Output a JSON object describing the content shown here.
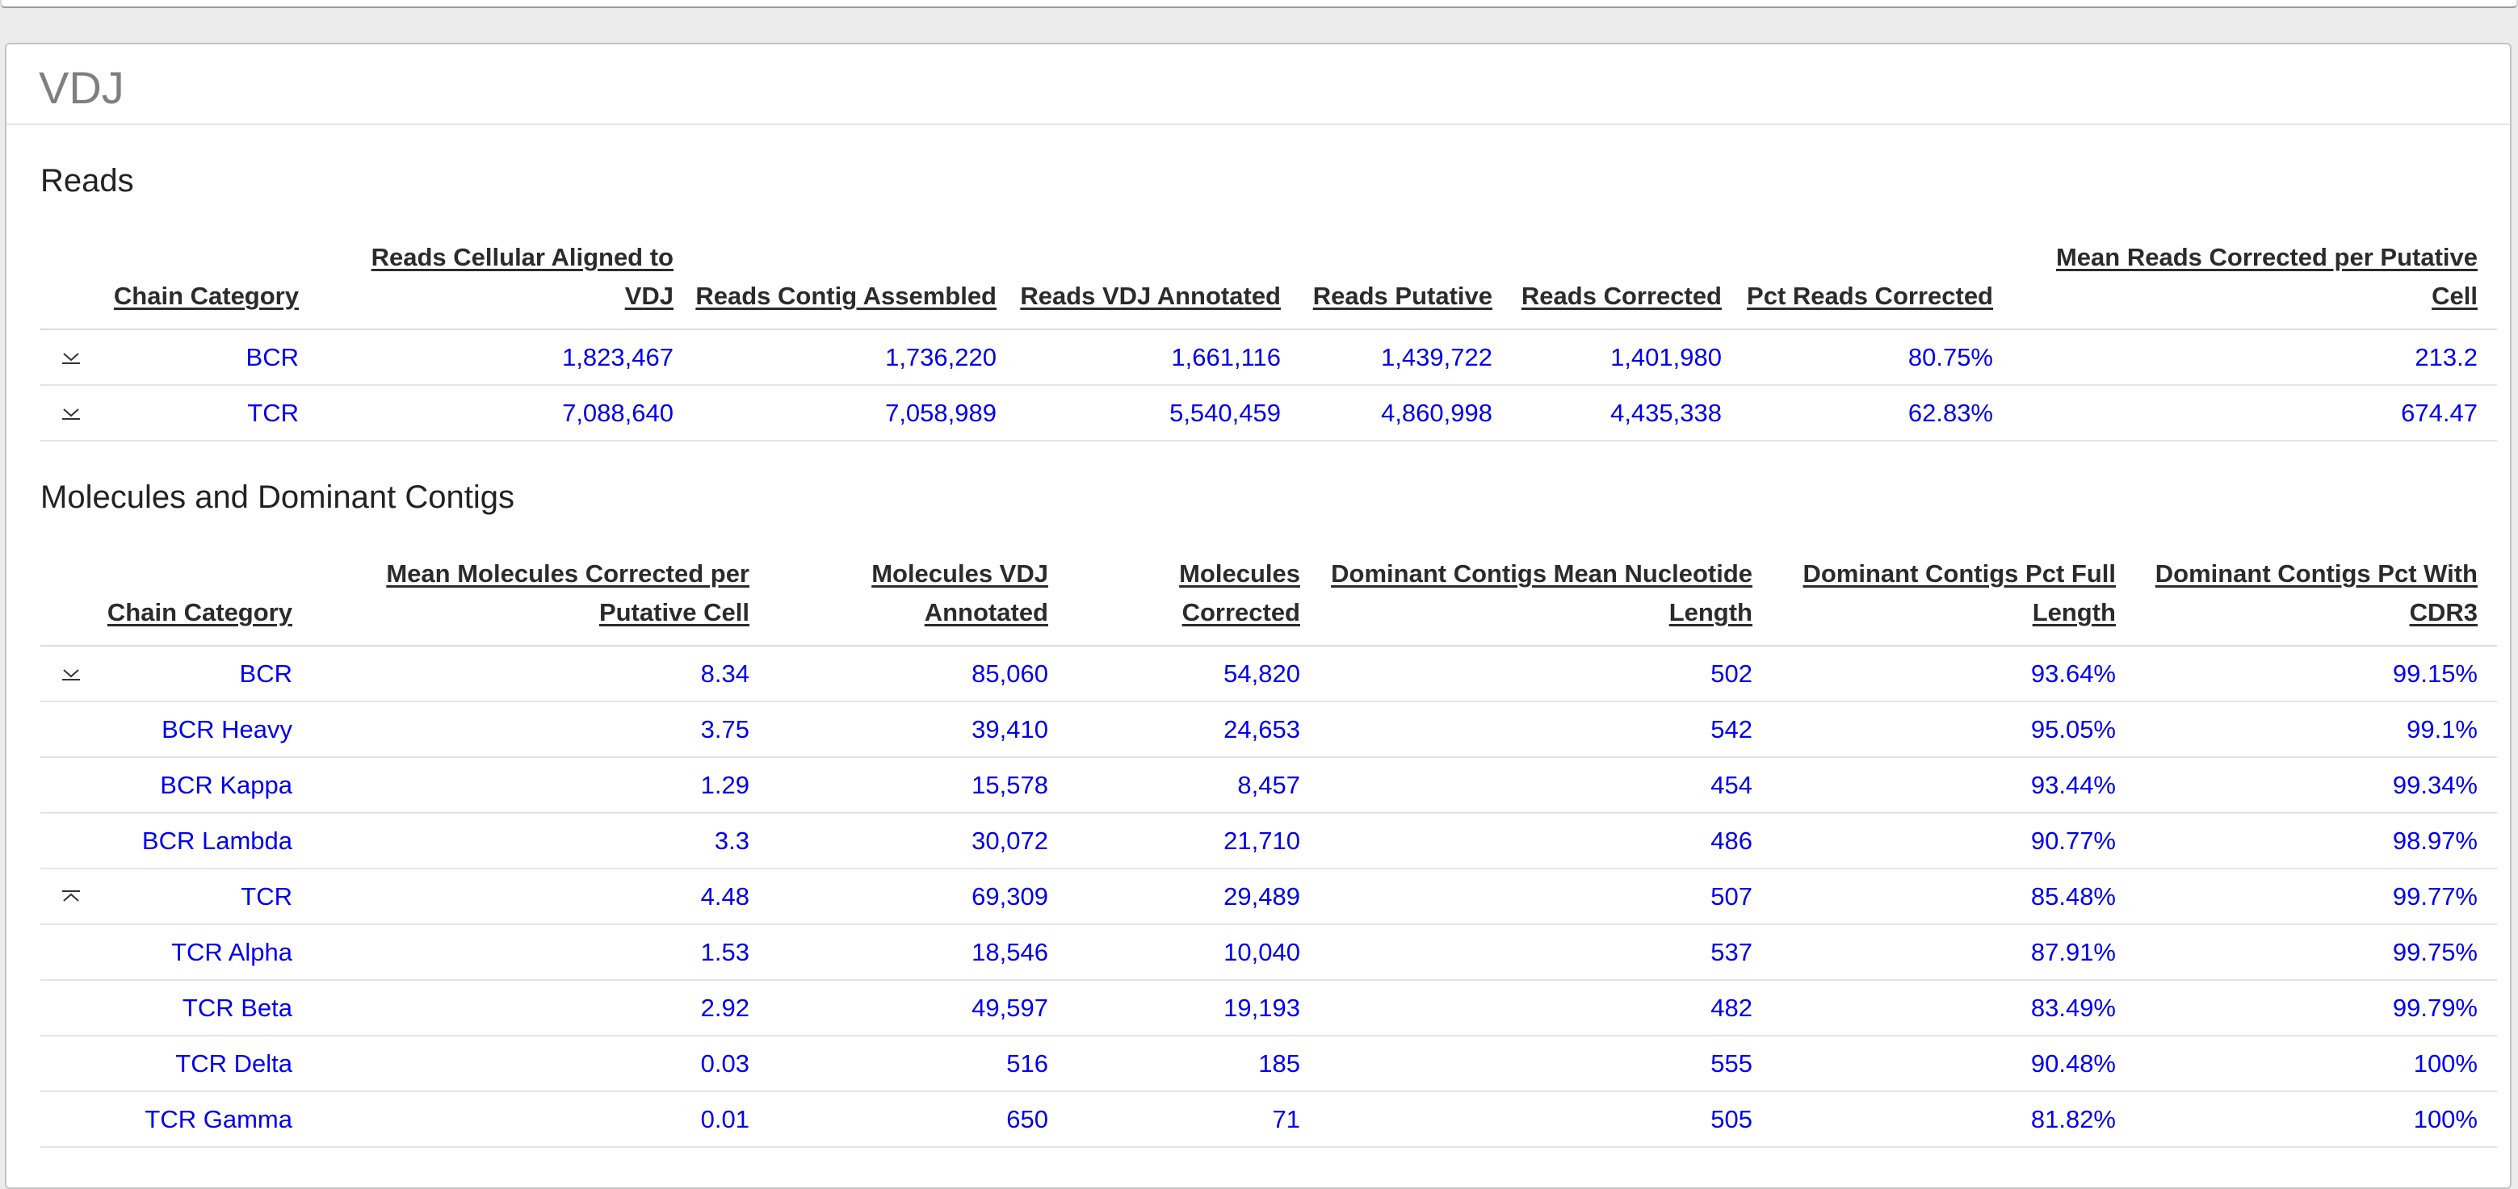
{
  "card": {
    "title": "VDJ"
  },
  "reads": {
    "title": "Reads",
    "headers": {
      "chain": "Chain Category",
      "aligned": "Reads Cellular Aligned to VDJ",
      "assembled": "Reads Contig Assembled",
      "annotated": "Reads VDJ Annotated",
      "putative": "Reads Putative",
      "corrected": "Reads Corrected",
      "pct": "Pct Reads Corrected",
      "mean": "Mean Reads Corrected per Putative Cell"
    },
    "rows": [
      {
        "toggle": "expand",
        "chain": "BCR",
        "aligned": "1,823,467",
        "assembled": "1,736,220",
        "annotated": "1,661,116",
        "putative": "1,439,722",
        "corrected": "1,401,980",
        "pct": "80.75%",
        "mean": "213.2"
      },
      {
        "toggle": "expand",
        "chain": "TCR",
        "aligned": "7,088,640",
        "assembled": "7,058,989",
        "annotated": "5,540,459",
        "putative": "4,860,998",
        "corrected": "4,435,338",
        "pct": "62.83%",
        "mean": "674.47"
      }
    ]
  },
  "molecules": {
    "title": "Molecules and Dominant Contigs",
    "headers": {
      "chain": "Chain Category",
      "mean_mol": "Mean Molecules Corrected per Putative Cell",
      "mol_annot": "Molecules VDJ Annotated",
      "mol_corr": "Molecules Corrected",
      "dom_len": "Dominant Contigs Mean Nucleotide Length",
      "dom_full": "Dominant Contigs Pct Full Length",
      "dom_cdr3": "Dominant Contigs Pct With CDR3"
    },
    "rows": [
      {
        "toggle": "expand",
        "chain": "BCR",
        "mean_mol": "8.34",
        "mol_annot": "85,060",
        "mol_corr": "54,820",
        "dom_len": "502",
        "dom_full": "93.64%",
        "dom_cdr3": "99.15%"
      },
      {
        "toggle": "",
        "chain": "BCR Heavy",
        "mean_mol": "3.75",
        "mol_annot": "39,410",
        "mol_corr": "24,653",
        "dom_len": "542",
        "dom_full": "95.05%",
        "dom_cdr3": "99.1%"
      },
      {
        "toggle": "",
        "chain": "BCR Kappa",
        "mean_mol": "1.29",
        "mol_annot": "15,578",
        "mol_corr": "8,457",
        "dom_len": "454",
        "dom_full": "93.44%",
        "dom_cdr3": "99.34%"
      },
      {
        "toggle": "",
        "chain": "BCR Lambda",
        "mean_mol": "3.3",
        "mol_annot": "30,072",
        "mol_corr": "21,710",
        "dom_len": "486",
        "dom_full": "90.77%",
        "dom_cdr3": "98.97%"
      },
      {
        "toggle": "collapse",
        "chain": "TCR",
        "mean_mol": "4.48",
        "mol_annot": "69,309",
        "mol_corr": "29,489",
        "dom_len": "507",
        "dom_full": "85.48%",
        "dom_cdr3": "99.77%"
      },
      {
        "toggle": "",
        "chain": "TCR Alpha",
        "mean_mol": "1.53",
        "mol_annot": "18,546",
        "mol_corr": "10,040",
        "dom_len": "537",
        "dom_full": "87.91%",
        "dom_cdr3": "99.75%"
      },
      {
        "toggle": "",
        "chain": "TCR Beta",
        "mean_mol": "2.92",
        "mol_annot": "49,597",
        "mol_corr": "19,193",
        "dom_len": "482",
        "dom_full": "83.49%",
        "dom_cdr3": "99.79%"
      },
      {
        "toggle": "",
        "chain": "TCR Delta",
        "mean_mol": "0.03",
        "mol_annot": "516",
        "mol_corr": "185",
        "dom_len": "555",
        "dom_full": "90.48%",
        "dom_cdr3": "100%"
      },
      {
        "toggle": "",
        "chain": "TCR Gamma",
        "mean_mol": "0.01",
        "mol_annot": "650",
        "mol_corr": "71",
        "dom_len": "505",
        "dom_full": "81.82%",
        "dom_cdr3": "100%"
      }
    ]
  },
  "colors": {
    "link": "#0000ee",
    "header_text": "#2b2b2b",
    "card_title": "#7f7f7f"
  },
  "icons": {
    "expand": "chevron-down-icon",
    "collapse": "chevron-up-icon"
  }
}
